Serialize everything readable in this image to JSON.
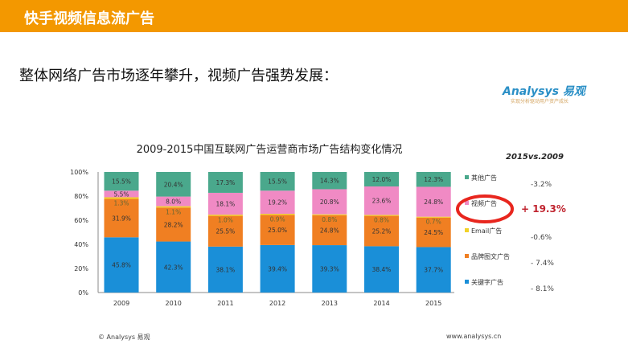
{
  "header": {
    "title": "快手视频信息流广告"
  },
  "subtitle": "整体网络广告市场逐年攀升，视频广告强势发展：",
  "logo": {
    "name": "Analysys 易观",
    "tagline": "实现分析驱动用户资产成长"
  },
  "footer": {
    "left": "© Analysys 易观",
    "right": "www.analysys.cn"
  },
  "chart_data": {
    "type": "bar",
    "stacked": true,
    "title": "2009-2015中国互联网广告运营商市场广告结构变化情况",
    "categories": [
      "2009",
      "2010",
      "2011",
      "2012",
      "2013",
      "2014",
      "2015"
    ],
    "yticks": [
      "0%",
      "20%",
      "40%",
      "60%",
      "80%",
      "100%"
    ],
    "ylim": [
      0,
      100
    ],
    "series": [
      {
        "name": "关键字广告",
        "color": "#1a8fd8",
        "values": [
          45.8,
          42.3,
          38.1,
          39.4,
          39.3,
          38.4,
          37.7
        ],
        "change": "- 8.1%"
      },
      {
        "name": "品牌图文广告",
        "color": "#f07f22",
        "values": [
          31.9,
          28.2,
          25.5,
          25.0,
          24.8,
          25.2,
          24.5
        ],
        "change": "- 7.4%"
      },
      {
        "name": "Email广告",
        "color": "#f2d228",
        "values": [
          1.3,
          1.1,
          1.0,
          0.9,
          0.8,
          0.8,
          0.7
        ],
        "change": "-0.6%"
      },
      {
        "name": "视频广告",
        "color": "#f08ac4",
        "values": [
          5.5,
          8.0,
          18.1,
          19.2,
          20.8,
          23.6,
          24.8
        ],
        "change": "+ 19.3%"
      },
      {
        "name": "其他广告",
        "color": "#4aa88c",
        "values": [
          15.5,
          20.4,
          17.3,
          15.5,
          14.3,
          12.0,
          12.3
        ],
        "change": "-3.2%"
      }
    ],
    "comparison_title": "2015vs.2009",
    "legend": "right"
  }
}
